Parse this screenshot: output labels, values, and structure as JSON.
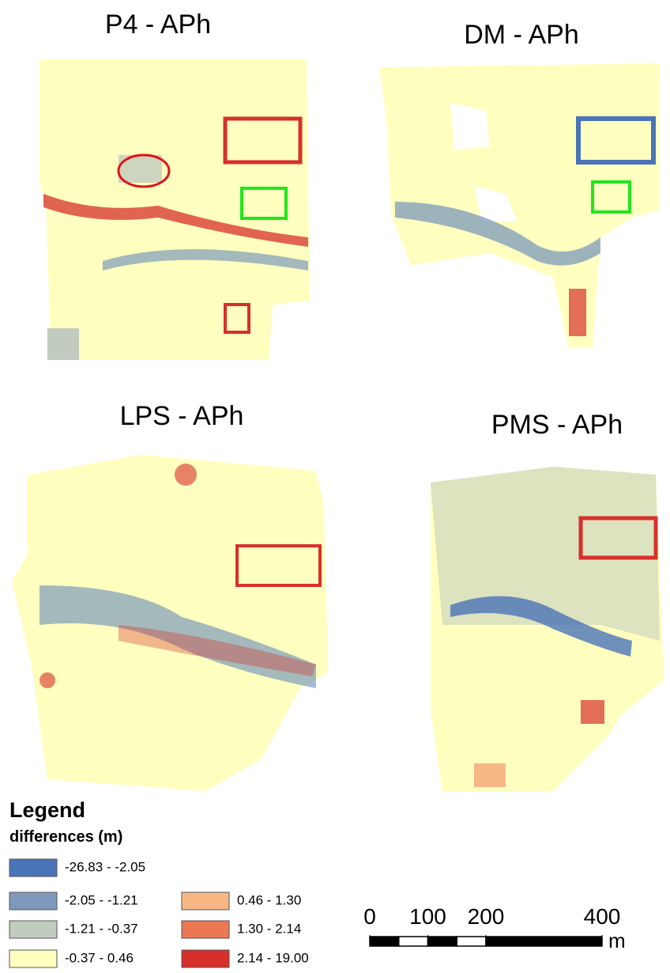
{
  "panels": [
    {
      "title": "P4 - APh"
    },
    {
      "title": "DM - APh"
    },
    {
      "title": "LPS - APh"
    },
    {
      "title": "PMS - APh"
    }
  ],
  "legend": {
    "title": "Legend",
    "subtitle": "differences (m)",
    "items": [
      {
        "label": "-26.83 - -2.05",
        "color": "#4a74b8"
      },
      {
        "label": "-2.05 - -1.21",
        "color": "#7f99bd"
      },
      {
        "label": "-1.21 - -0.37",
        "color": "#c1cbbf"
      },
      {
        "label": "-0.37 - 0.46",
        "color": "#ffffbf"
      },
      {
        "label": "0.46 - 1.30",
        "color": "#f7b886"
      },
      {
        "label": "1.30 - 2.14",
        "color": "#ec7853"
      },
      {
        "label": "2.14 - 19.00",
        "color": "#d7302a"
      }
    ]
  },
  "scale_bar": {
    "ticks": [
      0,
      100,
      200,
      400
    ],
    "unit": "m"
  }
}
